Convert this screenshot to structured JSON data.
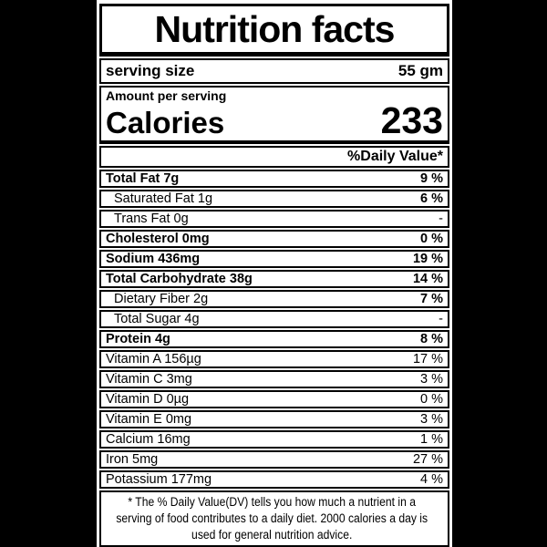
{
  "label": {
    "title": "Nutrition facts",
    "serving": {
      "label": "serving size",
      "value": "55 gm"
    },
    "amount_heading": "Amount per serving",
    "calories": {
      "label": "Calories",
      "value": "233"
    },
    "daily_value_heading": "%Daily Value*",
    "rows": [
      {
        "name": "Total Fat 7g",
        "value": "9 %",
        "name_bold": true,
        "value_bold": true,
        "indent": false
      },
      {
        "name": "Saturated Fat 1g",
        "value": "6 %",
        "name_bold": false,
        "value_bold": true,
        "indent": true
      },
      {
        "name": "Trans Fat 0g",
        "value": "-",
        "name_bold": false,
        "value_bold": false,
        "indent": true
      },
      {
        "name": "Cholesterol 0mg",
        "value": "0 %",
        "name_bold": true,
        "value_bold": true,
        "indent": false
      },
      {
        "name": "Sodium 436mg",
        "value": "19 %",
        "name_bold": true,
        "value_bold": true,
        "indent": false
      },
      {
        "name": "Total Carbohydrate 38g",
        "value": "14 %",
        "name_bold": true,
        "value_bold": true,
        "indent": false
      },
      {
        "name": "Dietary Fiber 2g",
        "value": "7 %",
        "name_bold": false,
        "value_bold": true,
        "indent": true
      },
      {
        "name": "Total Sugar 4g",
        "value": "-",
        "name_bold": false,
        "value_bold": false,
        "indent": true
      },
      {
        "name": "Protein 4g",
        "value": "8 %",
        "name_bold": true,
        "value_bold": true,
        "indent": false
      },
      {
        "name": "Vitamin A 156µg",
        "value": "17 %",
        "name_bold": false,
        "value_bold": false,
        "indent": false
      },
      {
        "name": "Vitamin C  3mg",
        "value": "3 %",
        "name_bold": false,
        "value_bold": false,
        "indent": false
      },
      {
        "name": "Vitamin D 0µg",
        "value": "0 %",
        "name_bold": false,
        "value_bold": false,
        "indent": false
      },
      {
        "name": "Vitamin E 0mg",
        "value": "3 %",
        "name_bold": false,
        "value_bold": false,
        "indent": false
      },
      {
        "name": "Calcium 16mg",
        "value": "1 %",
        "name_bold": false,
        "value_bold": false,
        "indent": false
      },
      {
        "name": "Iron 5mg",
        "value": "27 %",
        "name_bold": false,
        "value_bold": false,
        "indent": false
      },
      {
        "name": "Potassium 177mg",
        "value": "4 %",
        "name_bold": false,
        "value_bold": false,
        "indent": false
      }
    ],
    "footnote_lines": [
      "* The %  Daily Value(DV) tells you how much a nutrient in a",
      "serving of food contributes to a daily diet. 2000 calories a day is",
      "used for general nutrition advice."
    ]
  },
  "colors": {
    "background": "#000000",
    "label_background": "#ffffff",
    "text": "#000000",
    "border": "#000000"
  }
}
